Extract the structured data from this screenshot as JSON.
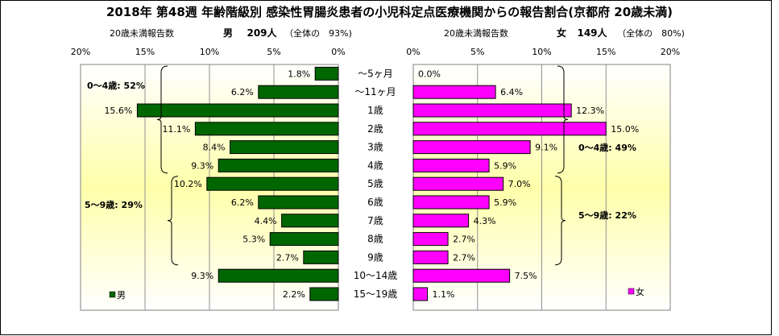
{
  "title": "2018年 第48週 年齢階級別 感染性胃腸炎患者の小児科定点医療機関からの報告割合(京都府 20歳未満)",
  "chart_data": [
    {
      "type": "bar",
      "orientation": "horizontal",
      "side": "left",
      "subtitle_label": "20歳未満報告数",
      "subtitle_sex": "男",
      "subtitle_count": "209人",
      "subtitle_share": "（全体の　93%)",
      "legend": "男",
      "color": "#006600",
      "xlim": [
        0,
        20
      ],
      "x_reversed": true,
      "ticks": [
        "20%",
        "15%",
        "10%",
        "5%",
        "0%"
      ],
      "categories": [
        "～5ヶ月",
        "～11ヶ月",
        "1歳",
        "2歳",
        "3歳",
        "4歳",
        "5歳",
        "6歳",
        "7歳",
        "8歳",
        "9歳",
        "10～14歳",
        "15～19歳"
      ],
      "values": [
        1.8,
        6.2,
        15.6,
        11.1,
        8.4,
        9.3,
        10.2,
        6.2,
        4.4,
        5.3,
        2.7,
        9.3,
        2.2
      ],
      "labels": [
        "1.8%",
        "6.2%",
        "15.6%",
        "11.1%",
        "8.4%",
        "9.3%",
        "10.2%",
        "6.2%",
        "4.4%",
        "5.3%",
        "2.7%",
        "9.3%",
        "2.2%"
      ],
      "annotations": [
        "0～4歳: 52%",
        "5～9歳: 29%"
      ]
    },
    {
      "type": "bar",
      "orientation": "horizontal",
      "side": "right",
      "subtitle_label": "20歳未満報告数",
      "subtitle_sex": "女",
      "subtitle_count": "149人",
      "subtitle_share": "（全体の　80%)",
      "legend": "女",
      "color": "#ff00ff",
      "xlim": [
        0,
        20
      ],
      "x_reversed": false,
      "ticks": [
        "0%",
        "5%",
        "10%",
        "15%",
        "20%"
      ],
      "categories": [
        "～5ヶ月",
        "～11ヶ月",
        "1歳",
        "2歳",
        "3歳",
        "4歳",
        "5歳",
        "6歳",
        "7歳",
        "8歳",
        "9歳",
        "10～14歳",
        "15～19歳"
      ],
      "values": [
        0.0,
        6.4,
        12.3,
        15.0,
        9.1,
        5.9,
        7.0,
        5.9,
        4.3,
        2.7,
        2.7,
        7.5,
        1.1
      ],
      "labels": [
        "0.0%",
        "6.4%",
        "12.3%",
        "15.0%",
        "9.1%",
        "5.9%",
        "7.0%",
        "5.9%",
        "4.3%",
        "2.7%",
        "2.7%",
        "7.5%",
        "1.1%"
      ],
      "annotations": [
        "0～4歳: 49%",
        "5～9歳: 22%"
      ]
    }
  ]
}
